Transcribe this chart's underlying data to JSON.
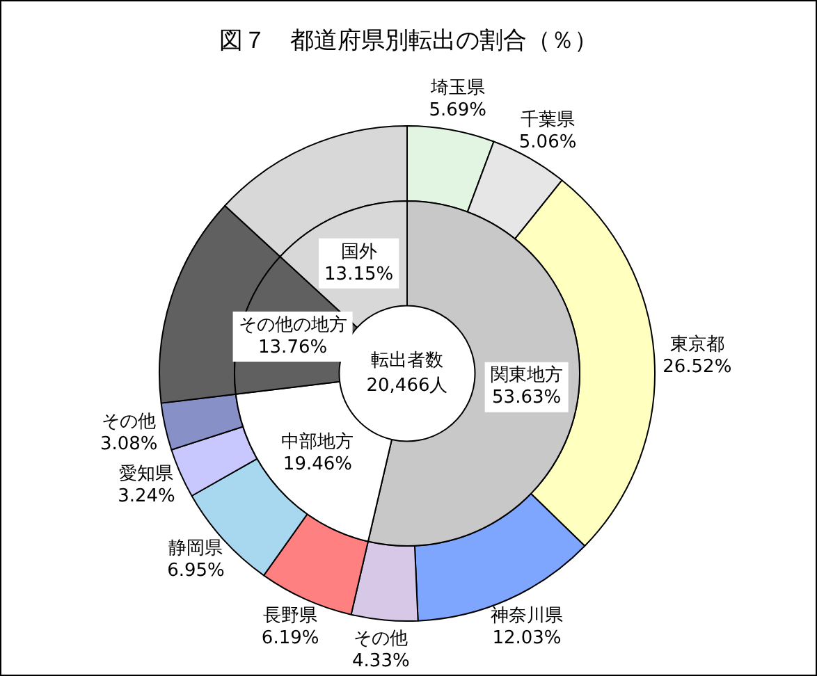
{
  "chart_data": [
    {
      "type": "donut",
      "title": "図７　都道府県別転出の割合（％）",
      "categories": [
        "関東地方",
        "中部地方",
        "その他の地方",
        "国外"
      ],
      "values": [
        53.63,
        19.46,
        13.76,
        13.15
      ],
      "value_labels": [
        "53.63%",
        "19.46%",
        "13.76%",
        "13.15%"
      ],
      "colors": [
        "#c8c8c8",
        "#ffffff",
        "#606060",
        "#d8d8d8"
      ],
      "annotations": [
        "転出者数",
        "20,466人"
      ]
    },
    {
      "type": "donut",
      "categories": [
        "埼玉県",
        "千葉県",
        "東京都",
        "神奈川県",
        "その他",
        "長野県",
        "静岡県",
        "愛知県",
        "その他",
        null,
        null
      ],
      "values": [
        5.69,
        5.06,
        26.52,
        12.03,
        4.33,
        6.19,
        6.95,
        3.24,
        3.08,
        13.76,
        13.15
      ],
      "value_labels": [
        "5.69%",
        "5.06%",
        "26.52%",
        "12.03%",
        "4.33%",
        "6.19%",
        "6.95%",
        "3.24%",
        "3.08%",
        null,
        null
      ],
      "colors": [
        "#e2f4e2",
        "#e6e6e6",
        "#ffffc0",
        "#7ea6ff",
        "#d8c8e8",
        "#ff8080",
        "#a8d8f0",
        "#c8c8ff",
        "#8890c8",
        "#606060",
        "#d8d8d8"
      ]
    }
  ]
}
